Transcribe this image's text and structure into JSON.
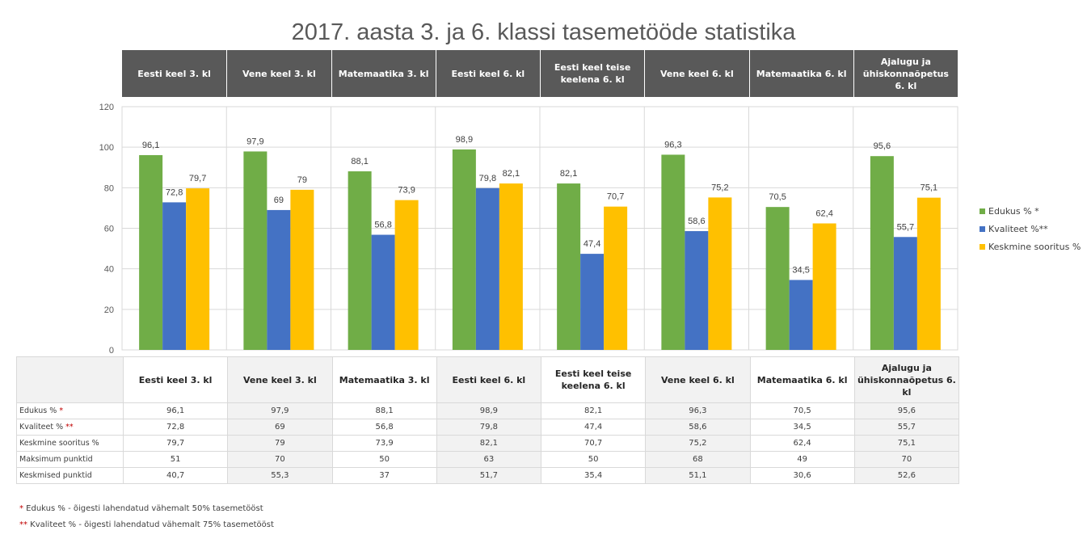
{
  "title": "2017. aasta 3. ja 6. klassi tasemetööde statistika",
  "columns": [
    {
      "label": "Eesti keel 3. kl",
      "shaded": false
    },
    {
      "label": "Vene keel 3. kl",
      "shaded": true
    },
    {
      "label": "Matemaatika 3. kl",
      "shaded": false
    },
    {
      "label": "Eesti keel 6. kl",
      "shaded": true
    },
    {
      "label": "Eesti keel teise keelena 6. kl",
      "shaded": false
    },
    {
      "label": "Vene keel 6. kl",
      "shaded": true
    },
    {
      "label": "Matemaatika 6. kl",
      "shaded": false
    },
    {
      "label": "Ajalugu ja ühiskonnaõpetus 6. kl",
      "shaded": true
    }
  ],
  "colors": {
    "edukus": "#70ad47",
    "kvaliteet": "#4472c4",
    "keskmine": "#ffc000",
    "header_bg": "#595959",
    "asterisk": "#c00000"
  },
  "chart_data": {
    "type": "bar",
    "title": "2017. aasta 3. ja 6. klassi tasemetööde statistika",
    "categories": [
      "Eesti keel 3. kl",
      "Vene keel 3. kl",
      "Matemaatika 3. kl",
      "Eesti keel 6. kl",
      "Eesti keel teise keelena 6. kl",
      "Vene keel 6. kl",
      "Matemaatika 6. kl",
      "Ajalugu ja ühiskonnaõpetus 6. kl"
    ],
    "series": [
      {
        "name": "Edukus % *",
        "color": "#70ad47",
        "values": [
          96.1,
          97.9,
          88.1,
          98.9,
          82.1,
          96.3,
          70.5,
          95.6
        ],
        "labels": [
          "96,1",
          "97,9",
          "88,1",
          "98,9",
          "82,1",
          "96,3",
          "70,5",
          "95,6"
        ]
      },
      {
        "name": "Kvaliteet %**",
        "color": "#4472c4",
        "values": [
          72.8,
          69,
          56.8,
          79.8,
          47.4,
          58.6,
          34.5,
          55.7
        ],
        "labels": [
          "72,8",
          "69",
          "56,8",
          "79,8",
          "47,4",
          "58,6",
          "34,5",
          "55,7"
        ]
      },
      {
        "name": "Keskmine sooritus %",
        "color": "#ffc000",
        "values": [
          79.7,
          79,
          73.9,
          82.1,
          70.7,
          75.2,
          62.4,
          75.1
        ],
        "labels": [
          "79,7",
          "79",
          "73,9",
          "82,1",
          "70,7",
          "75,2",
          "62,4",
          "75,1"
        ]
      }
    ],
    "yticks": [
      "0",
      "20",
      "40",
      "60",
      "80",
      "100",
      "120"
    ],
    "ylim": [
      0,
      120
    ],
    "xlabel": "",
    "ylabel": "",
    "grid": true,
    "legend_position": "right"
  },
  "legend": [
    {
      "label": "Edukus % *",
      "color": "#70ad47"
    },
    {
      "label": "Kvaliteet %**",
      "color": "#4472c4"
    },
    {
      "label": "Keskmine sooritus %",
      "color": "#ffc000"
    }
  ],
  "table": {
    "rows": [
      {
        "label": "Edukus %",
        "marker": "*",
        "values": [
          "96,1",
          "97,9",
          "88,1",
          "98,9",
          "82,1",
          "96,3",
          "70,5",
          "95,6"
        ]
      },
      {
        "label": "Kvaliteet %",
        "marker": "**",
        "values": [
          "72,8",
          "69",
          "56,8",
          "79,8",
          "47,4",
          "58,6",
          "34,5",
          "55,7"
        ]
      },
      {
        "label": "Keskmine sooritus %",
        "marker": "",
        "values": [
          "79,7",
          "79",
          "73,9",
          "82,1",
          "70,7",
          "75,2",
          "62,4",
          "75,1"
        ]
      },
      {
        "label": "Maksimum punktid",
        "marker": "",
        "values": [
          "51",
          "70",
          "50",
          "63",
          "50",
          "68",
          "49",
          "70"
        ]
      },
      {
        "label": "Keskmised punktid",
        "marker": "",
        "values": [
          "40,7",
          "55,3",
          "37",
          "51,7",
          "35,4",
          "51,1",
          "30,6",
          "52,6"
        ]
      }
    ]
  },
  "footnotes": [
    {
      "marker": "*",
      "text": " Edukus % - õigesti lahendatud vähemalt 50% tasemetööst"
    },
    {
      "marker": "**",
      "text": " Kvaliteet % - õigesti lahendatud vähemalt 75% tasemetööst"
    }
  ]
}
